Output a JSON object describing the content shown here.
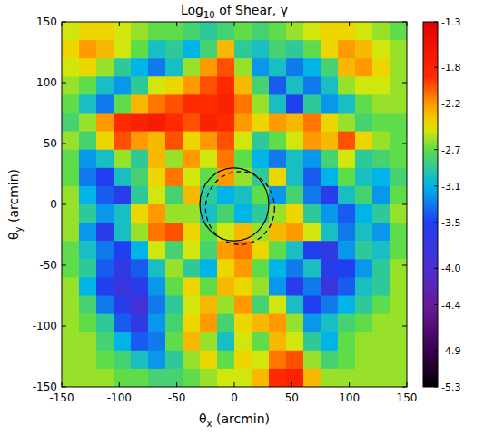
{
  "chart_data": {
    "type": "heatmap",
    "title": "Log10 of Shear, γ",
    "x_label": "θx (arcmin)",
    "y_label": "θy (arcmin)",
    "xlim": [
      -150,
      150
    ],
    "ylim": [
      -150,
      150
    ],
    "xticks": [
      -150,
      -100,
      -50,
      0,
      50,
      100,
      150
    ],
    "yticks": [
      -150,
      -100,
      -50,
      0,
      50,
      100,
      150
    ],
    "grid": false,
    "x": [
      -142.5,
      -127.5,
      -112.5,
      -97.5,
      -82.5,
      -67.5,
      -52.5,
      -37.5,
      -22.5,
      -7.5,
      7.5,
      22.5,
      37.5,
      52.5,
      67.5,
      82.5,
      97.5,
      112.5,
      127.5,
      142.5
    ],
    "y": [
      142.5,
      127.5,
      112.5,
      97.5,
      82.5,
      67.5,
      52.5,
      37.5,
      22.5,
      7.5,
      -7.5,
      -22.5,
      -37.5,
      -52.5,
      -67.5,
      -82.5,
      -97.5,
      -112.5,
      -127.5,
      -142.5
    ],
    "values": [
      [
        -2.5,
        -2.4,
        -2.4,
        -2.5,
        -2.6,
        -2.7,
        -2.7,
        -2.8,
        -2.9,
        -2.8,
        -2.7,
        -2.8,
        -2.7,
        -2.6,
        -2.5,
        -2.4,
        -2.4,
        -2.5,
        -2.6,
        -2.7
      ],
      [
        -2.4,
        -2.2,
        -2.3,
        -2.5,
        -2.7,
        -3.0,
        -2.9,
        -3.1,
        -2.8,
        -2.3,
        -2.9,
        -3.0,
        -2.8,
        -2.9,
        -2.7,
        -2.4,
        -2.2,
        -2.3,
        -2.5,
        -2.6
      ],
      [
        -2.5,
        -2.4,
        -2.6,
        -2.9,
        -3.1,
        -3.3,
        -3.0,
        -2.6,
        -2.2,
        -2.0,
        -2.6,
        -3.2,
        -3.0,
        -3.3,
        -3.1,
        -2.8,
        -2.3,
        -2.2,
        -2.4,
        -2.6
      ],
      [
        -2.6,
        -2.7,
        -3.0,
        -3.2,
        -2.9,
        -2.5,
        -2.4,
        -2.2,
        -2.0,
        -1.9,
        -2.3,
        -2.8,
        -3.4,
        -3.0,
        -3.3,
        -3.0,
        -2.6,
        -2.5,
        -2.5,
        -2.6
      ],
      [
        -2.7,
        -3.0,
        -3.3,
        -2.7,
        -2.3,
        -2.1,
        -2.0,
        -1.9,
        -1.9,
        -1.8,
        -2.1,
        -2.6,
        -3.0,
        -3.5,
        -2.9,
        -3.2,
        -3.0,
        -2.7,
        -2.6,
        -2.6
      ],
      [
        -2.8,
        -2.6,
        -2.2,
        -1.9,
        -1.8,
        -1.7,
        -1.9,
        -2.0,
        -1.8,
        -1.9,
        -2.2,
        -2.4,
        -2.2,
        -2.3,
        -2.1,
        -2.4,
        -2.6,
        -2.8,
        -2.7,
        -2.7
      ],
      [
        -2.6,
        -2.8,
        -2.4,
        -2.0,
        -2.2,
        -2.3,
        -2.0,
        -2.4,
        -2.2,
        -2.0,
        -2.5,
        -2.9,
        -2.7,
        -2.5,
        -2.2,
        -2.3,
        -2.0,
        -2.4,
        -2.6,
        -2.7
      ],
      [
        -2.7,
        -3.2,
        -3.0,
        -2.6,
        -2.9,
        -2.3,
        -2.6,
        -2.2,
        -2.5,
        -2.1,
        -2.7,
        -3.1,
        -3.3,
        -3.0,
        -3.2,
        -2.8,
        -2.5,
        -2.9,
        -2.8,
        -2.7
      ],
      [
        -2.7,
        -3.3,
        -3.5,
        -3.0,
        -2.8,
        -2.4,
        -2.1,
        -2.5,
        -2.7,
        -2.2,
        -2.6,
        -2.9,
        -2.4,
        -3.0,
        -3.4,
        -3.1,
        -2.7,
        -3.0,
        -3.1,
        -2.8
      ],
      [
        -2.6,
        -3.1,
        -3.4,
        -3.6,
        -2.9,
        -2.5,
        -2.8,
        -2.3,
        -2.9,
        -3.1,
        -3.0,
        -2.7,
        -3.2,
        -2.8,
        -3.3,
        -3.6,
        -3.0,
        -2.8,
        -3.2,
        -2.7
      ],
      [
        -2.6,
        -2.9,
        -3.2,
        -3.0,
        -2.4,
        -2.2,
        -2.6,
        -2.6,
        -3.0,
        -2.8,
        -3.1,
        -2.9,
        -2.6,
        -2.4,
        -2.9,
        -3.2,
        -3.4,
        -3.1,
        -2.9,
        -2.6
      ],
      [
        -2.6,
        -3.2,
        -3.6,
        -3.0,
        -2.6,
        -2.1,
        -2.0,
        -2.4,
        -2.7,
        -2.5,
        -2.3,
        -2.6,
        -2.3,
        -2.2,
        -2.5,
        -3.0,
        -3.3,
        -3.0,
        -3.2,
        -2.7
      ],
      [
        -2.7,
        -3.0,
        -3.3,
        -3.5,
        -3.1,
        -2.5,
        -2.8,
        -2.5,
        -2.8,
        -2.2,
        -2.1,
        -2.4,
        -2.7,
        -3.0,
        -3.5,
        -3.7,
        -3.2,
        -2.9,
        -3.0,
        -2.7
      ],
      [
        -2.7,
        -2.9,
        -3.4,
        -3.7,
        -3.4,
        -3.0,
        -2.6,
        -2.9,
        -3.1,
        -2.4,
        -2.2,
        -2.7,
        -3.1,
        -3.3,
        -3.0,
        -3.6,
        -3.5,
        -3.2,
        -2.9,
        -2.6
      ],
      [
        -2.6,
        -3.1,
        -3.5,
        -3.8,
        -3.6,
        -3.2,
        -2.7,
        -2.4,
        -2.7,
        -2.3,
        -2.4,
        -2.6,
        -3.2,
        -3.6,
        -3.3,
        -3.8,
        -3.4,
        -3.0,
        -2.9,
        -2.6
      ],
      [
        -2.6,
        -2.8,
        -3.3,
        -3.6,
        -3.9,
        -3.3,
        -2.9,
        -2.5,
        -2.3,
        -2.6,
        -2.2,
        -2.8,
        -2.5,
        -3.0,
        -3.5,
        -3.3,
        -3.1,
        -2.9,
        -2.7,
        -2.6
      ],
      [
        -2.6,
        -2.7,
        -2.9,
        -3.4,
        -3.7,
        -3.2,
        -2.8,
        -2.4,
        -2.2,
        -2.8,
        -2.4,
        -2.3,
        -2.2,
        -2.6,
        -3.2,
        -3.0,
        -2.8,
        -2.7,
        -2.6,
        -2.6
      ],
      [
        -2.6,
        -2.6,
        -2.8,
        -3.1,
        -3.4,
        -3.3,
        -2.7,
        -2.3,
        -2.6,
        -3.0,
        -2.5,
        -2.7,
        -2.3,
        -2.5,
        -2.9,
        -3.1,
        -2.7,
        -2.6,
        -2.6,
        -2.6
      ],
      [
        -2.6,
        -2.6,
        -2.7,
        -2.8,
        -3.0,
        -3.2,
        -2.9,
        -2.6,
        -2.4,
        -2.7,
        -2.4,
        -2.5,
        -2.1,
        -2.0,
        -2.6,
        -2.8,
        -2.7,
        -2.6,
        -2.6,
        -2.6
      ],
      [
        -2.6,
        -2.6,
        -2.6,
        -2.7,
        -2.7,
        -2.8,
        -2.8,
        -2.7,
        -2.6,
        -2.5,
        -2.5,
        -2.3,
        -1.9,
        -1.8,
        -2.3,
        -2.6,
        -2.6,
        -2.6,
        -2.6,
        -2.6
      ]
    ],
    "colorbar": {
      "range": [
        -5.3,
        -1.3
      ],
      "ticks": [
        -1.3,
        -1.8,
        -2.2,
        -2.7,
        -3.1,
        -3.5,
        {
          "value": -4,
          "label": "-4.0"
        },
        -4.4,
        -4.9,
        -5.3
      ]
    },
    "circles": [
      {
        "center": [
          0,
          0
        ],
        "radius": 30,
        "line_style": "solid"
      },
      {
        "center": [
          5,
          -3
        ],
        "radius": 30,
        "line_style": "dashed"
      }
    ]
  }
}
